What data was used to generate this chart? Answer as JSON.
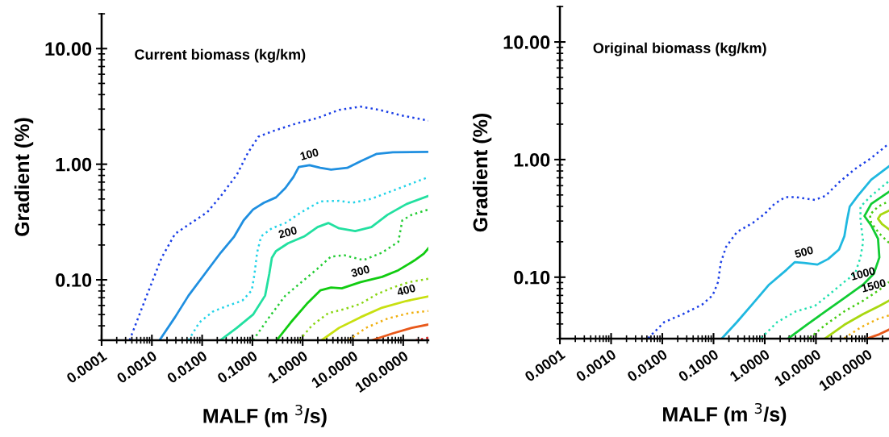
{
  "chart_data": [
    {
      "type": "line",
      "title": "Current biomass (kg/km)",
      "xlabel": "MALF (m $^{3}$/s)",
      "ylabel": "Gradient (%)",
      "log": "xy",
      "grid": false,
      "legend": false,
      "marker": "none",
      "xlim": [
        0.0001,
        316
      ],
      "ylim": [
        0.03,
        20
      ],
      "xticks": [
        {
          "value": 0.0001,
          "label": "0.0001"
        },
        {
          "value": 0.001,
          "label": "0.0010"
        },
        {
          "value": 0.01,
          "label": "0.0100"
        },
        {
          "value": 0.1,
          "label": "0.1000"
        },
        {
          "value": 1,
          "label": "1.0000"
        },
        {
          "value": 10,
          "label": "10.0000"
        },
        {
          "value": 100,
          "label": "100.0000"
        }
      ],
      "yticks": [
        {
          "value": 0.1,
          "label": "0.10"
        },
        {
          "value": 1,
          "label": "1.00"
        },
        {
          "value": 10,
          "label": "10.00"
        }
      ],
      "annotations": [
        {
          "text": "100",
          "x": 1.37,
          "y": 0.98
        },
        {
          "text": "200",
          "x": 0.51,
          "y": 0.207
        },
        {
          "text": "300",
          "x": 14.2,
          "y": 0.0955
        },
        {
          "text": "400",
          "x": 116,
          "y": 0.0656
        }
      ],
      "series": [
        {
          "color": "#1a3ee6",
          "line_style": "dotted",
          "x": [
            0.00036,
            0.00075,
            0.00156,
            0.00289,
            0.00605,
            0.0127,
            0.0235,
            0.049,
            0.081,
            0.132,
            0.244,
            0.74,
            1.98,
            5.3,
            14.2,
            33.7,
            90,
            316
          ],
          "values": [
            0.03,
            0.069,
            0.155,
            0.25,
            0.31,
            0.385,
            0.53,
            0.81,
            1.25,
            1.73,
            1.92,
            2.25,
            2.51,
            2.95,
            3.15,
            2.95,
            2.65,
            2.38
          ]
        },
        {
          "color": "#1f8fe0",
          "line_style": "solid",
          "x": [
            0.00142,
            0.00289,
            0.00536,
            0.0112,
            0.0235,
            0.0435,
            0.067,
            0.103,
            0.169,
            0.294,
            0.452,
            0.653,
            0.836,
            1.37,
            2.24,
            3.67,
            7.7,
            14.2,
            29.8,
            62,
            316
          ],
          "values": [
            0.03,
            0.0475,
            0.073,
            0.112,
            0.172,
            0.237,
            0.327,
            0.405,
            0.464,
            0.516,
            0.622,
            0.773,
            0.946,
            0.98,
            0.93,
            0.897,
            0.93,
            1.06,
            1.23,
            1.27,
            1.28
          ]
        },
        {
          "color": "#22d3e8",
          "line_style": "dotted",
          "x": [
            0.00536,
            0.00877,
            0.0162,
            0.03,
            0.063,
            0.097,
            0.11,
            0.124,
            0.149,
            0.244,
            0.452,
            0.946,
            2.24,
            5.3,
            9.8,
            23.3,
            62,
            316
          ],
          "values": [
            0.03,
            0.0427,
            0.053,
            0.059,
            0.066,
            0.081,
            0.112,
            0.172,
            0.237,
            0.279,
            0.31,
            0.385,
            0.477,
            0.482,
            0.464,
            0.502,
            0.59,
            0.773
          ]
        },
        {
          "color": "#22e0a0",
          "line_style": "solid",
          "x": [
            0.0229,
            0.049,
            0.103,
            0.179,
            0.216,
            0.244,
            0.294,
            0.51,
            1.07,
            1.98,
            3.24,
            5.3,
            11.1,
            23.3,
            48.8,
            116,
            316
          ],
          "values": [
            0.03,
            0.0384,
            0.05,
            0.073,
            0.112,
            0.155,
            0.177,
            0.207,
            0.237,
            0.286,
            0.31,
            0.279,
            0.264,
            0.286,
            0.365,
            0.452,
            0.531
          ]
        },
        {
          "color": "#22cc33",
          "line_style": "dotted",
          "x": [
            0.103,
            0.216,
            0.452,
            0.946,
            1.98,
            3.67,
            6.8,
            16.1,
            38.1,
            80,
            96,
            148,
            316
          ],
          "values": [
            0.03,
            0.0475,
            0.073,
            0.0955,
            0.125,
            0.159,
            0.163,
            0.148,
            0.172,
            0.213,
            0.327,
            0.365,
            0.405
          ]
        },
        {
          "color": "#11cc11",
          "line_style": "solid",
          "x": [
            0.305,
            0.578,
            1.21,
            2.24,
            3.67,
            6.0,
            14.2,
            38.1,
            80,
            167,
            257,
            316
          ],
          "values": [
            0.03,
            0.0427,
            0.062,
            0.081,
            0.0857,
            0.0843,
            0.0955,
            0.106,
            0.121,
            0.147,
            0.168,
            0.187
          ]
        },
        {
          "color": "#88d611",
          "line_style": "dotted",
          "x": [
            0.857,
            1.55,
            3.24,
            6.8,
            14.2,
            29.8,
            62,
            131,
            316
          ],
          "values": [
            0.03,
            0.0405,
            0.0515,
            0.0558,
            0.062,
            0.075,
            0.0857,
            0.0955,
            0.102
          ]
        },
        {
          "color": "#c8e010",
          "line_style": "solid",
          "x": [
            2.38,
            5.3,
            14.2,
            38.1,
            116,
            316
          ],
          "values": [
            0.03,
            0.0384,
            0.0475,
            0.0574,
            0.0656,
            0.0718
          ]
        },
        {
          "color": "#f0b010",
          "line_style": "dotted",
          "x": [
            8.2,
            18.2,
            48.8,
            131,
            316
          ],
          "values": [
            0.03,
            0.0384,
            0.0462,
            0.0515,
            0.0538
          ]
        },
        {
          "color": "#e8581a",
          "line_style": "solid",
          "x": [
            23.9,
            62,
            148,
            316
          ],
          "values": [
            0.03,
            0.0344,
            0.0384,
            0.041
          ]
        },
        {
          "color": "#e82020",
          "line_style": "dotted",
          "x": [
            178,
            316
          ],
          "values": [
            0.03,
            0.0315
          ]
        }
      ]
    },
    {
      "type": "line",
      "title": "Original biomass (kg/km)",
      "xlabel": "MALF (m $^{3}$/s)",
      "ylabel": "Gradient (%)",
      "log": "xy",
      "grid": false,
      "legend": false,
      "marker": "none",
      "xlim": [
        0.0001,
        267
      ],
      "ylim": [
        0.03,
        20
      ],
      "xticks": [
        {
          "value": 0.0001,
          "label": "0.0001"
        },
        {
          "value": 0.001,
          "label": "0.0010"
        },
        {
          "value": 0.01,
          "label": "0.0100"
        },
        {
          "value": 0.1,
          "label": "0.1000"
        },
        {
          "value": 1,
          "label": "1.0000"
        },
        {
          "value": 10,
          "label": "10.0000"
        },
        {
          "value": 100,
          "label": "100.0000"
        }
      ],
      "yticks": [
        {
          "value": 0.1,
          "label": "0.10"
        },
        {
          "value": 1,
          "label": "1.00"
        },
        {
          "value": 10,
          "label": "10.00"
        }
      ],
      "annotations": [
        {
          "text": "500",
          "x": 5.9,
          "y": 0.132
        },
        {
          "text": "1000",
          "x": 83.6,
          "y": 0.0865
        },
        {
          "text": "1500",
          "x": 135,
          "y": 0.0684
        }
      ],
      "series": [
        {
          "color": "#1a3ee6",
          "line_style": "dotted",
          "x": [
            0.0053,
            0.0109,
            0.0255,
            0.0594,
            0.0964,
            0.123,
            0.138,
            0.176,
            0.286,
            0.59,
            0.957,
            1.55,
            2.51,
            4.07,
            9.5,
            15.4,
            28.2,
            58,
            120,
            267
          ],
          "values": [
            0.0303,
            0.0415,
            0.0486,
            0.0583,
            0.0702,
            0.0912,
            0.132,
            0.181,
            0.242,
            0.29,
            0.34,
            0.42,
            0.479,
            0.479,
            0.454,
            0.492,
            0.64,
            0.832,
            1.03,
            1.37
          ]
        },
        {
          "color": "#1fb8e0",
          "line_style": "solid",
          "x": [
            0.147,
            0.286,
            0.59,
            1.22,
            2.67,
            3.84,
            5.9,
            10.7,
            17.4,
            28.2,
            35.9,
            40.5,
            45.7,
            65.6,
            120,
            267
          ],
          "values": [
            0.0303,
            0.0415,
            0.0598,
            0.0865,
            0.1156,
            0.134,
            0.132,
            0.128,
            0.143,
            0.172,
            0.223,
            0.306,
            0.398,
            0.492,
            0.675,
            0.877
          ]
        },
        {
          "color": "#22e0b0",
          "line_style": "dotted",
          "x": [
            0.847,
            1.75,
            4.07,
            9.5,
            17.4,
            35.9,
            58,
            74,
            83.6,
            74,
            74,
            120,
            267
          ],
          "values": [
            0.0303,
            0.0415,
            0.0512,
            0.0569,
            0.0702,
            0.0912,
            0.107,
            0.147,
            0.201,
            0.306,
            0.398,
            0.492,
            0.656
          ]
        },
        {
          "color": "#11cc33",
          "line_style": "solid",
          "x": [
            2.94,
            6.6,
            15.4,
            35.9,
            83.6,
            135,
            173,
            163,
            120,
            88.7,
            120,
            267
          ],
          "values": [
            0.0303,
            0.0394,
            0.0512,
            0.0665,
            0.0865,
            0.107,
            0.147,
            0.212,
            0.275,
            0.331,
            0.42,
            0.532
          ]
        },
        {
          "color": "#44cc11",
          "line_style": "dotted",
          "x": [
            7.5,
            15.4,
            35.9,
            83.6,
            173,
            267,
            null,
            267,
            173,
            120,
            113,
            163,
            267
          ],
          "values": [
            0.0303,
            0.0394,
            0.0512,
            0.0631,
            0.078,
            0.0912,
            null,
            0.196,
            0.235,
            0.29,
            0.34,
            0.398,
            0.443
          ]
        },
        {
          "color": "#a8d810",
          "line_style": "solid",
          "x": [
            15.4,
            35.9,
            83.6,
            173,
            267,
            null,
            267,
            195,
            163,
            183,
            267
          ],
          "values": [
            0.0303,
            0.0394,
            0.0486,
            0.0569,
            0.0631,
            null,
            0.255,
            0.283,
            0.314,
            0.34,
            0.368
          ]
        },
        {
          "color": "#f0b010",
          "line_style": "dotted",
          "x": [
            35.9,
            74,
            153,
            267
          ],
          "values": [
            0.0303,
            0.0373,
            0.0437,
            0.0473
          ]
        },
        {
          "color": "#e8581a",
          "line_style": "solid",
          "x": [
            106,
            173,
            267
          ],
          "values": [
            0.0303,
            0.0327,
            0.0358
          ]
        }
      ]
    }
  ]
}
